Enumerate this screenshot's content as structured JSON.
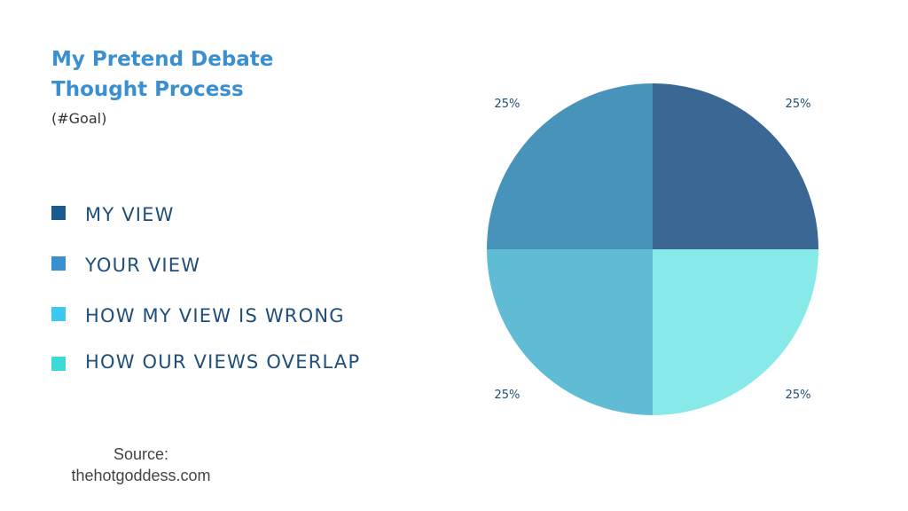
{
  "chart_data": {
    "type": "pie",
    "title_lines": [
      "My Pretend Debate",
      "Thought Process"
    ],
    "subtitle": "(#Goal)",
    "legend": [
      {
        "label": "MY VIEW",
        "color": "#1b5a8e"
      },
      {
        "label": "YOUR VIEW",
        "color": "#3a8fd0"
      },
      {
        "label": "HOW MY VIEW IS WRONG",
        "color": "#3ec8f0"
      },
      {
        "label": "HOW OUR VIEWS OVERLAP",
        "color": "#3dd8d8"
      }
    ],
    "slices": [
      {
        "value": 25,
        "label": "25%",
        "color": "#3b6794"
      },
      {
        "value": 25,
        "label": "25%",
        "color": "#88eae8"
      },
      {
        "value": 25,
        "label": "25%",
        "color": "#5fbcd4"
      },
      {
        "value": 25,
        "label": "25%",
        "color": "#4893ba"
      }
    ]
  },
  "source": {
    "line1": "Source:",
    "line2": "thehotgoddess.com"
  }
}
